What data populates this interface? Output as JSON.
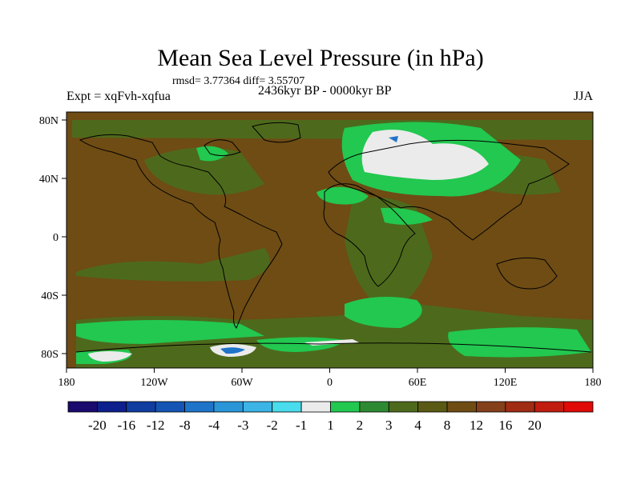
{
  "title": "Mean Sea Level Pressure (in hPa)",
  "stats": "rmsd= 3.77364 diff= 3.55707",
  "experiment": "Expt = xqFvh-xqfua",
  "period": "2436kyr BP - 0000kyr BP",
  "season": "JJA",
  "map": {
    "lat_labels": [
      "80N",
      "40N",
      "0",
      "40S",
      "80S"
    ],
    "lon_labels": [
      "180",
      "120W",
      "60W",
      "0",
      "60E",
      "120E",
      "180"
    ],
    "background_color": "#6e4c14"
  },
  "colorbar": {
    "colors": [
      "#1a0a6e",
      "#0c1f8c",
      "#0f3da0",
      "#1554b4",
      "#1e74c8",
      "#2a96d8",
      "#3cb4e6",
      "#48dcec",
      "#ebebeb",
      "#22c850",
      "#2e8a32",
      "#4d6a1c",
      "#5a5a14",
      "#6e4c14",
      "#84401a",
      "#a02c14",
      "#c01c10",
      "#e00a08"
    ],
    "labels": [
      "-20",
      "-16",
      "-12",
      "-8",
      "-4",
      "-3",
      "-2",
      "-1",
      "1",
      "2",
      "3",
      "4",
      "8",
      "12",
      "16",
      "20"
    ]
  }
}
